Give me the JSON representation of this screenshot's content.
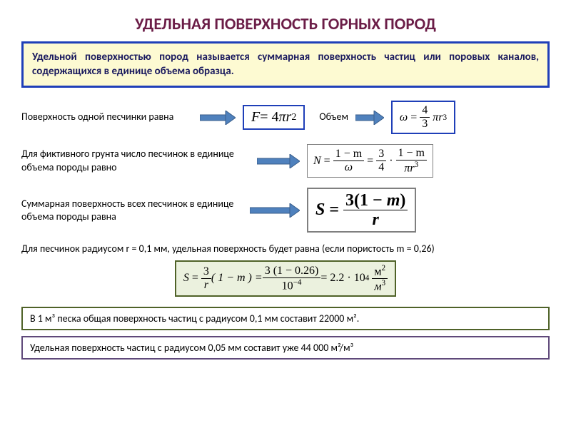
{
  "colors": {
    "title": "#6b1d47",
    "def_border": "#1f3fb8",
    "def_bg": "#fdfad2",
    "def_text": "#1a1a5e",
    "arrow_fill": "#4f81bd",
    "arrow_stroke": "#385d8a",
    "formula_border_blue": "#1f3fb8",
    "formula_border_gray": "#7f7f7f",
    "formula_border_green": "#4f6228",
    "formula_bg_green": "#ebf1de",
    "box_green": "#4f6228",
    "box_purple": "#5f497a"
  },
  "title": "УДЕЛЬНАЯ ПОВЕРХНОСТЬ ГОРНЫХ ПОРОД",
  "definition": "Удельной поверхностью пород называется суммарная поверхность частиц или поровых каналов, содержащихся в единице объема образца.",
  "row1": {
    "label1": "Поверхность одной песчинки равна",
    "label2": "Объем"
  },
  "row2": {
    "label": "Для фиктивного грунта число песчинок в единице объема породы равно"
  },
  "row3": {
    "label": "Суммарная поверхность всех песчинок в единице объема породы равна"
  },
  "row4": {
    "label": "Для песчинок радиусом r = 0,1 мм, удельная поверхность будет равна (если пористость m = 0,26)"
  },
  "box1": "В 1 м³ песка общая поверхность частиц с радиусом 0,1 мм составит 22000 м².",
  "box2": "Удельная поверхность частиц с радиусом 0,05 мм составит уже 44 000 м²/м³",
  "formulas": {
    "F": {
      "lhs": "F",
      "eq": " = 4",
      "pi": "π",
      "r": "r",
      "exp": "2",
      "fontsize": 20
    },
    "omega": {
      "lhs": "ω",
      "numTop": "4",
      "numBot": "3",
      "pi": "π",
      "r": "r",
      "exp": "3",
      "fontsize": 16
    },
    "N": {
      "lhs": "N",
      "top1": "1 − m",
      "bot1": "ω",
      "top2": "3",
      "bot2": "4",
      "top3": "1 − m",
      "bot3pi": "π",
      "bot3r": "r",
      "bot3exp": "3",
      "fontsize": 16
    },
    "S": {
      "lhs": "S",
      "top": "3(1 − ",
      "m": "m",
      "topEnd": ")",
      "bot": "r",
      "fontsize": 24
    },
    "Scalc": {
      "lhs": "S",
      "top1": "3",
      "bot1": "r",
      "mid1": "( 1 − m ) = ",
      "top2": "3 (1 − 0.26)",
      "bot2": "10",
      "bot2exp": "−4",
      "result": " = 2.2 · 10",
      "resexp": "4",
      "unitTop": "м",
      "unitTopExp": "2",
      "unitBot": "м",
      "unitBotExp": "3",
      "fontsize": 16
    }
  }
}
